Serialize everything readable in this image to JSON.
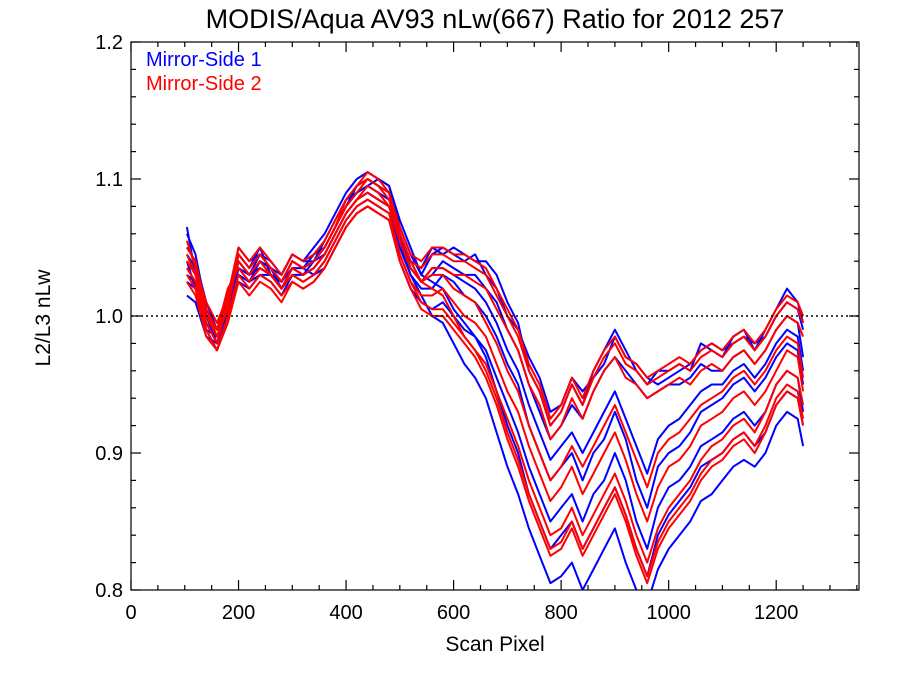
{
  "chart_data": {
    "type": "line",
    "title": "MODIS/Aqua AV93 nLw(667) Ratio for 2012 257",
    "xlabel": "Scan Pixel",
    "ylabel": "L2/L3 nLw",
    "xlim": [
      0,
      1354
    ],
    "ylim": [
      0.8,
      1.2
    ],
    "x_ticks": [
      0,
      200,
      400,
      600,
      800,
      1000,
      1200
    ],
    "x_tick_labels": [
      "0",
      "200",
      "400",
      "600",
      "800",
      "1000",
      "1200"
    ],
    "y_ticks": [
      0.8,
      0.9,
      1.0,
      1.1,
      1.2
    ],
    "y_tick_labels": [
      "0.8",
      "0.9",
      "1.0",
      "1.1",
      "1.2"
    ],
    "reference_line": {
      "y": 1.0,
      "style": "dotted"
    },
    "legend": {
      "placement": "top-left",
      "entries": [
        {
          "label": "Mirror-Side 1",
          "color": "#0000ff"
        },
        {
          "label": "Mirror-Side 2",
          "color": "#ff0000"
        }
      ]
    },
    "x": [
      104,
      120,
      140,
      160,
      180,
      200,
      220,
      240,
      260,
      280,
      300,
      320,
      340,
      360,
      380,
      400,
      420,
      440,
      460,
      480,
      500,
      520,
      540,
      560,
      580,
      600,
      620,
      640,
      660,
      680,
      700,
      720,
      740,
      760,
      780,
      800,
      820,
      840,
      860,
      880,
      900,
      920,
      940,
      960,
      980,
      1000,
      1020,
      1040,
      1060,
      1080,
      1100,
      1120,
      1140,
      1160,
      1180,
      1200,
      1220,
      1240,
      1250
    ],
    "series": [
      {
        "color": "#0000ff",
        "values": [
          1.065,
          1.03,
          1.0,
          0.985,
          1.005,
          1.045,
          1.035,
          1.05,
          1.03,
          1.025,
          1.04,
          1.035,
          1.045,
          1.05,
          1.065,
          1.08,
          1.095,
          1.1,
          1.095,
          1.09,
          1.06,
          1.04,
          1.035,
          1.05,
          1.045,
          1.05,
          1.045,
          1.04,
          1.04,
          1.03,
          1.01,
          0.995,
          0.96,
          0.945,
          0.92,
          0.93,
          0.95,
          0.935,
          0.96,
          0.975,
          0.99,
          0.975,
          0.96,
          0.95,
          0.96,
          0.96,
          0.965,
          0.96,
          0.98,
          0.975,
          0.97,
          0.985,
          0.99,
          0.975,
          0.99,
          1.005,
          1.02,
          1.01,
          0.995
        ]
      },
      {
        "color": "#0000ff",
        "values": [
          1.05,
          1.04,
          1.01,
          0.99,
          1.0,
          1.04,
          1.03,
          1.045,
          1.04,
          1.03,
          1.045,
          1.04,
          1.04,
          1.055,
          1.07,
          1.085,
          1.09,
          1.095,
          1.1,
          1.095,
          1.07,
          1.05,
          1.03,
          1.045,
          1.05,
          1.045,
          1.04,
          1.045,
          1.03,
          1.02,
          1.0,
          0.99,
          0.97,
          0.955,
          0.93,
          0.935,
          0.955,
          0.945,
          0.955,
          0.965,
          0.985,
          0.97,
          0.965,
          0.955,
          0.95,
          0.955,
          0.96,
          0.965,
          0.975,
          0.98,
          0.975,
          0.98,
          0.985,
          0.98,
          0.985,
          1.0,
          1.01,
          1.005,
          0.99
        ]
      },
      {
        "color": "#0000ff",
        "values": [
          1.04,
          1.02,
          0.995,
          0.98,
          1.01,
          1.03,
          1.025,
          1.04,
          1.035,
          1.02,
          1.03,
          1.03,
          1.04,
          1.045,
          1.06,
          1.075,
          1.085,
          1.09,
          1.085,
          1.08,
          1.06,
          1.035,
          1.025,
          1.03,
          1.04,
          1.035,
          1.03,
          1.03,
          1.02,
          1.01,
          0.99,
          0.975,
          0.95,
          0.93,
          0.91,
          0.92,
          0.935,
          0.925,
          0.945,
          0.96,
          0.97,
          0.96,
          0.95,
          0.94,
          0.945,
          0.95,
          0.95,
          0.955,
          0.965,
          0.96,
          0.96,
          0.97,
          0.975,
          0.965,
          0.975,
          0.99,
          1.0,
          0.995,
          0.97
        ]
      },
      {
        "color": "#0000ff",
        "values": [
          1.03,
          1.025,
          0.99,
          0.975,
          1.0,
          1.035,
          1.03,
          1.035,
          1.03,
          1.025,
          1.035,
          1.035,
          1.03,
          1.04,
          1.055,
          1.07,
          1.08,
          1.085,
          1.08,
          1.075,
          1.05,
          1.03,
          1.02,
          1.02,
          1.03,
          1.025,
          1.015,
          1.01,
          1.0,
          0.985,
          0.965,
          0.95,
          0.92,
          0.9,
          0.88,
          0.89,
          0.9,
          0.88,
          0.9,
          0.91,
          0.93,
          0.91,
          0.88,
          0.86,
          0.89,
          0.9,
          0.905,
          0.915,
          0.93,
          0.935,
          0.94,
          0.95,
          0.955,
          0.945,
          0.955,
          0.97,
          0.98,
          0.975,
          0.95
        ]
      },
      {
        "color": "#0000ff",
        "values": [
          1.015,
          1.01,
          0.985,
          0.98,
          1.005,
          1.025,
          1.02,
          1.03,
          1.025,
          1.015,
          1.03,
          1.025,
          1.03,
          1.035,
          1.05,
          1.065,
          1.075,
          1.08,
          1.075,
          1.07,
          1.04,
          1.02,
          1.01,
          1.005,
          1.01,
          1.0,
          0.99,
          0.985,
          0.975,
          0.955,
          0.935,
          0.915,
          0.89,
          0.87,
          0.85,
          0.86,
          0.87,
          0.85,
          0.87,
          0.88,
          0.9,
          0.88,
          0.85,
          0.83,
          0.86,
          0.875,
          0.88,
          0.89,
          0.905,
          0.91,
          0.915,
          0.925,
          0.93,
          0.92,
          0.93,
          0.95,
          0.96,
          0.955,
          0.93
        ]
      },
      {
        "color": "#0000ff",
        "values": [
          1.06,
          1.045,
          1.005,
          0.99,
          1.01,
          1.05,
          1.04,
          1.045,
          1.035,
          1.03,
          1.045,
          1.04,
          1.05,
          1.06,
          1.075,
          1.09,
          1.1,
          1.105,
          1.1,
          1.095,
          1.065,
          1.045,
          1.03,
          1.025,
          1.02,
          1.005,
          0.995,
          0.985,
          0.97,
          0.945,
          0.92,
          0.9,
          0.87,
          0.85,
          0.83,
          0.84,
          0.85,
          0.83,
          0.845,
          0.86,
          0.875,
          0.855,
          0.83,
          0.81,
          0.84,
          0.855,
          0.865,
          0.875,
          0.89,
          0.895,
          0.9,
          0.91,
          0.915,
          0.905,
          0.915,
          0.935,
          0.945,
          0.94,
          0.92
        ]
      },
      {
        "color": "#0000ff",
        "values": [
          1.025,
          1.02,
          0.99,
          0.985,
          1.0,
          1.03,
          1.025,
          1.03,
          1.03,
          1.02,
          1.035,
          1.03,
          1.035,
          1.045,
          1.06,
          1.075,
          1.085,
          1.09,
          1.085,
          1.08,
          1.055,
          1.03,
          1.015,
          1.0,
          0.995,
          0.98,
          0.965,
          0.955,
          0.94,
          0.915,
          0.89,
          0.87,
          0.845,
          0.825,
          0.805,
          0.81,
          0.82,
          0.8,
          0.815,
          0.83,
          0.845,
          0.82,
          0.8,
          0.79,
          0.815,
          0.83,
          0.84,
          0.85,
          0.865,
          0.87,
          0.88,
          0.89,
          0.895,
          0.89,
          0.9,
          0.92,
          0.93,
          0.925,
          0.905
        ]
      },
      {
        "color": "#0000ff",
        "values": [
          1.045,
          1.035,
          1.0,
          0.98,
          1.005,
          1.04,
          1.03,
          1.04,
          1.035,
          1.025,
          1.04,
          1.035,
          1.04,
          1.05,
          1.065,
          1.08,
          1.09,
          1.095,
          1.09,
          1.085,
          1.06,
          1.04,
          1.025,
          1.035,
          1.035,
          1.03,
          1.025,
          1.02,
          1.01,
          0.995,
          0.975,
          0.96,
          0.935,
          0.915,
          0.895,
          0.905,
          0.915,
          0.9,
          0.915,
          0.93,
          0.945,
          0.925,
          0.905,
          0.885,
          0.91,
          0.92,
          0.925,
          0.935,
          0.945,
          0.95,
          0.95,
          0.96,
          0.965,
          0.955,
          0.965,
          0.98,
          0.99,
          0.985,
          0.96
        ]
      },
      {
        "color": "#ff0000",
        "values": [
          1.055,
          1.035,
          1.01,
          0.995,
          1.015,
          1.05,
          1.04,
          1.05,
          1.04,
          1.03,
          1.045,
          1.04,
          1.045,
          1.055,
          1.07,
          1.085,
          1.095,
          1.1,
          1.095,
          1.09,
          1.065,
          1.045,
          1.04,
          1.05,
          1.05,
          1.045,
          1.045,
          1.04,
          1.035,
          1.02,
          1.005,
          0.99,
          0.965,
          0.95,
          0.925,
          0.935,
          0.955,
          0.94,
          0.96,
          0.975,
          0.985,
          0.97,
          0.965,
          0.955,
          0.96,
          0.965,
          0.97,
          0.965,
          0.975,
          0.98,
          0.975,
          0.985,
          0.99,
          0.98,
          0.99,
          1.005,
          1.015,
          1.01,
          1.0
        ]
      },
      {
        "color": "#ff0000",
        "values": [
          1.045,
          1.03,
          1.0,
          0.985,
          1.005,
          1.045,
          1.035,
          1.045,
          1.035,
          1.025,
          1.04,
          1.035,
          1.04,
          1.05,
          1.065,
          1.08,
          1.09,
          1.1,
          1.095,
          1.085,
          1.06,
          1.04,
          1.035,
          1.045,
          1.045,
          1.04,
          1.04,
          1.035,
          1.03,
          1.015,
          1.0,
          0.985,
          0.96,
          0.945,
          0.92,
          0.93,
          0.95,
          0.935,
          0.955,
          0.97,
          0.98,
          0.965,
          0.96,
          0.95,
          0.955,
          0.96,
          0.965,
          0.96,
          0.97,
          0.975,
          0.97,
          0.98,
          0.985,
          0.975,
          0.985,
          1.0,
          1.01,
          1.005,
          0.995
        ]
      },
      {
        "color": "#ff0000",
        "values": [
          1.035,
          1.025,
          0.995,
          0.98,
          1.01,
          1.04,
          1.03,
          1.04,
          1.03,
          1.02,
          1.035,
          1.03,
          1.035,
          1.045,
          1.06,
          1.075,
          1.085,
          1.095,
          1.09,
          1.08,
          1.055,
          1.035,
          1.025,
          1.035,
          1.035,
          1.03,
          1.03,
          1.025,
          1.02,
          1.005,
          0.99,
          0.975,
          0.95,
          0.935,
          0.91,
          0.92,
          0.94,
          0.925,
          0.945,
          0.96,
          0.97,
          0.955,
          0.95,
          0.94,
          0.945,
          0.95,
          0.955,
          0.95,
          0.96,
          0.965,
          0.96,
          0.97,
          0.975,
          0.965,
          0.975,
          0.99,
          1.0,
          0.995,
          0.985
        ]
      },
      {
        "color": "#ff0000",
        "values": [
          1.04,
          1.03,
          1.005,
          0.99,
          1.02,
          1.035,
          1.025,
          1.035,
          1.03,
          1.02,
          1.03,
          1.025,
          1.03,
          1.04,
          1.055,
          1.07,
          1.08,
          1.085,
          1.08,
          1.075,
          1.045,
          1.025,
          1.015,
          1.015,
          1.02,
          1.01,
          1.0,
          0.995,
          0.985,
          0.965,
          0.945,
          0.93,
          0.905,
          0.885,
          0.865,
          0.875,
          0.89,
          0.87,
          0.885,
          0.9,
          0.915,
          0.895,
          0.87,
          0.85,
          0.875,
          0.89,
          0.895,
          0.905,
          0.92,
          0.925,
          0.93,
          0.94,
          0.945,
          0.935,
          0.945,
          0.96,
          0.975,
          0.97,
          0.945
        ]
      },
      {
        "color": "#ff0000",
        "values": [
          1.03,
          1.02,
          0.99,
          0.975,
          1.0,
          1.03,
          1.02,
          1.03,
          1.025,
          1.015,
          1.025,
          1.02,
          1.025,
          1.035,
          1.05,
          1.065,
          1.075,
          1.08,
          1.075,
          1.07,
          1.04,
          1.02,
          1.005,
          1.0,
          1.0,
          0.99,
          0.98,
          0.97,
          0.955,
          0.935,
          0.91,
          0.89,
          0.865,
          0.845,
          0.825,
          0.83,
          0.845,
          0.825,
          0.84,
          0.855,
          0.87,
          0.85,
          0.825,
          0.805,
          0.83,
          0.845,
          0.855,
          0.865,
          0.88,
          0.89,
          0.895,
          0.905,
          0.91,
          0.9,
          0.915,
          0.935,
          0.945,
          0.94,
          0.92
        ]
      },
      {
        "color": "#ff0000",
        "values": [
          1.05,
          1.04,
          1.005,
          0.985,
          1.01,
          1.045,
          1.035,
          1.045,
          1.035,
          1.025,
          1.04,
          1.035,
          1.04,
          1.05,
          1.065,
          1.085,
          1.095,
          1.105,
          1.1,
          1.09,
          1.06,
          1.04,
          1.025,
          1.02,
          1.015,
          1.0,
          0.985,
          0.975,
          0.96,
          0.94,
          0.915,
          0.895,
          0.87,
          0.85,
          0.83,
          0.835,
          0.85,
          0.83,
          0.845,
          0.86,
          0.875,
          0.855,
          0.83,
          0.81,
          0.835,
          0.85,
          0.86,
          0.87,
          0.885,
          0.895,
          0.9,
          0.91,
          0.915,
          0.905,
          0.92,
          0.94,
          0.95,
          0.945,
          0.925
        ]
      },
      {
        "color": "#ff0000",
        "values": [
          1.025,
          1.015,
          0.985,
          0.975,
          0.995,
          1.025,
          1.015,
          1.025,
          1.02,
          1.01,
          1.025,
          1.02,
          1.025,
          1.035,
          1.05,
          1.065,
          1.075,
          1.08,
          1.075,
          1.07,
          1.045,
          1.025,
          1.01,
          1.005,
          1.005,
          0.995,
          0.985,
          0.975,
          0.965,
          0.945,
          0.925,
          0.905,
          0.88,
          0.86,
          0.84,
          0.845,
          0.86,
          0.84,
          0.855,
          0.87,
          0.885,
          0.865,
          0.84,
          0.82,
          0.845,
          0.86,
          0.87,
          0.88,
          0.895,
          0.905,
          0.91,
          0.92,
          0.925,
          0.915,
          0.93,
          0.95,
          0.96,
          0.955,
          0.935
        ]
      },
      {
        "color": "#ff0000",
        "values": [
          1.035,
          1.025,
          1.0,
          0.99,
          1.015,
          1.04,
          1.03,
          1.04,
          1.03,
          1.02,
          1.035,
          1.03,
          1.035,
          1.045,
          1.06,
          1.075,
          1.085,
          1.09,
          1.085,
          1.08,
          1.055,
          1.035,
          1.025,
          1.03,
          1.03,
          1.02,
          1.015,
          1.01,
          0.995,
          0.98,
          0.96,
          0.945,
          0.92,
          0.9,
          0.88,
          0.89,
          0.905,
          0.89,
          0.905,
          0.92,
          0.935,
          0.915,
          0.895,
          0.875,
          0.9,
          0.91,
          0.915,
          0.925,
          0.935,
          0.94,
          0.945,
          0.955,
          0.96,
          0.95,
          0.96,
          0.975,
          0.985,
          0.98,
          0.955
        ]
      }
    ]
  }
}
